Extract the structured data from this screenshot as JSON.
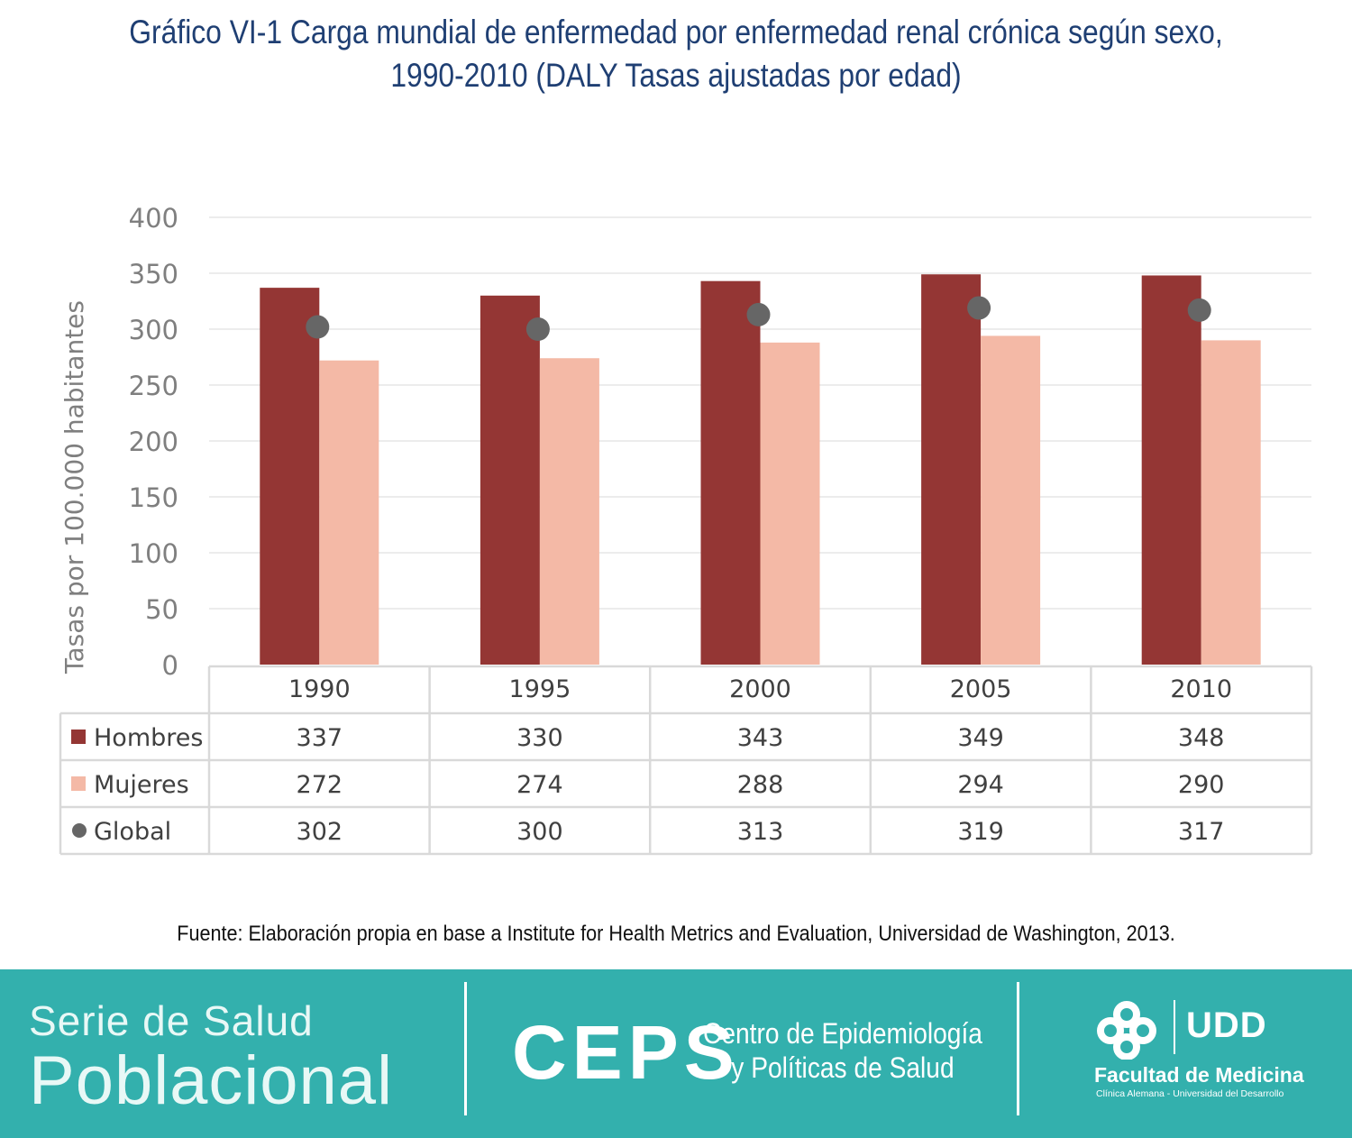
{
  "title_line1": "Gráfico VI-1 Carga mundial de enfermedad por enfermedad renal crónica según sexo,",
  "title_line2": "1990-2010 (DALY Tasas ajustadas por edad)",
  "source": "Fuente: Elaboración propia en base a Institute for Health Metrics and Evaluation, Universidad de Washington, 2013.",
  "footer": {
    "serie_line1": "Serie de Salud",
    "serie_line2": "Poblacional",
    "ceps": "CEPS",
    "ceps_line1": "Centro de Epidemiología",
    "ceps_line2": "y Políticas de Salud",
    "udd": "UDD",
    "facultad": "Facultad de Medicina",
    "facultad_sub": "Clínica Alemana - Universidad del Desarrollo",
    "bg_color": "#33b0ad"
  },
  "chart_data": {
    "type": "bar",
    "categories": [
      "1990",
      "1995",
      "2000",
      "2005",
      "2010"
    ],
    "series": [
      {
        "name": "Hombres",
        "values": [
          337,
          330,
          343,
          349,
          348
        ],
        "color": "#943634",
        "mark": "bar"
      },
      {
        "name": "Mujeres",
        "values": [
          272,
          274,
          288,
          294,
          290
        ],
        "color": "#f4b9a6",
        "mark": "bar"
      },
      {
        "name": "Global",
        "values": [
          302,
          300,
          313,
          319,
          317
        ],
        "color": "#666666",
        "mark": "dot"
      }
    ],
    "ylabel": "Tasas por 100.000 habitantes",
    "ylim": [
      0,
      400
    ],
    "yticks": [
      0,
      50,
      100,
      150,
      200,
      250,
      300,
      350,
      400
    ],
    "grid": true,
    "legend": "data-table"
  }
}
